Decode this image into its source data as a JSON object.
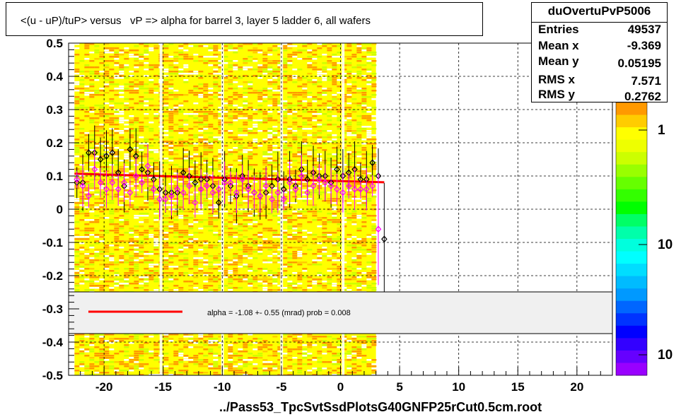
{
  "title": "<(u - uP)/tuP> versus   vP => alpha for barrel 3, layer 5 ladder 6, all wafers",
  "file_label": "../Pass53_TpcSvtSsdPlotsG40GNFP25rCut0.5cm.root",
  "stats": {
    "name": "duOvertuPvP5006",
    "rows": [
      {
        "label": "Entries",
        "value": "49537"
      },
      {
        "label": "Mean x",
        "value": "-9.369"
      },
      {
        "label": "Mean y",
        "value": "0.05195"
      },
      {
        "label": "RMS x",
        "value": "7.571"
      },
      {
        "label": "RMS y",
        "value": "0.2762"
      }
    ]
  },
  "legend": {
    "fit_text": "alpha =   -1.08 +-  0.55 (mrad) prob = 0.008",
    "line_color": "#ff0000"
  },
  "palette_labels": [
    "1",
    "10",
    "10"
  ],
  "chart_data": {
    "type": "scatter",
    "xlim": [
      -23,
      23
    ],
    "ylim": [
      -0.5,
      0.5
    ],
    "x_ticks": [
      -20,
      -15,
      -10,
      -5,
      0,
      5,
      10,
      15,
      20
    ],
    "x_tick_labels": [
      "-20",
      "-15",
      "-10",
      "-5",
      "0",
      "5",
      "10",
      "15",
      "20"
    ],
    "y_ticks": [
      -0.5,
      -0.4,
      -0.3,
      -0.2,
      -0.1,
      0,
      0.1,
      0.2,
      0.3,
      0.4,
      0.5
    ],
    "y_tick_labels": [
      "-0.5",
      "-0.4",
      "-0.3",
      "-0.2",
      "-0.1",
      "0",
      "0.1",
      "0.2",
      "0.3",
      "0.4",
      "0.5"
    ],
    "grid": true,
    "heatmap_x_range": [
      -22.5,
      3
    ],
    "fit_line": {
      "x": [
        -22.5,
        3.7
      ],
      "y": [
        0.107,
        0.081
      ]
    },
    "series": [
      {
        "marker": "black-open-diamond",
        "x": [
          -22.3,
          -21.8,
          -21.3,
          -20.8,
          -20.3,
          -19.8,
          -19.3,
          -18.8,
          -18.3,
          -17.8,
          -17.3,
          -16.8,
          -16.3,
          -15.8,
          -15.3,
          -14.8,
          -14.3,
          -13.8,
          -13.3,
          -12.8,
          -12.3,
          -11.8,
          -11.3,
          -10.8,
          -10.3,
          -9.8,
          -9.3,
          -8.8,
          -8.3,
          -7.8,
          -7.3,
          -6.8,
          -6.3,
          -5.8,
          -5.3,
          -4.8,
          -4.3,
          -3.8,
          -3.3,
          -2.8,
          -2.3,
          -1.8,
          -1.3,
          -0.8,
          -0.3,
          0.2,
          0.7,
          1.2,
          1.7,
          2.2,
          2.7,
          3.2,
          3.7
        ],
        "y": [
          0.08,
          0.08,
          0.17,
          0.17,
          0.15,
          0.16,
          0.17,
          0.11,
          0.07,
          0.18,
          0.16,
          0.12,
          0.11,
          0.09,
          0.06,
          0.05,
          0.05,
          0.05,
          0.11,
          0.1,
          0.08,
          0.09,
          0.09,
          0.07,
          0.02,
          0.09,
          0.07,
          0.04,
          0.1,
          0.07,
          0.05,
          0.04,
          0.05,
          0.07,
          0.09,
          0.06,
          0.09,
          0.07,
          0.12,
          0.09,
          0.11,
          0.1,
          0.1,
          0.08,
          0.12,
          0.1,
          0.11,
          0.12,
          0.09,
          0.09,
          0.14,
          0.1,
          -0.09
        ]
      },
      {
        "marker": "magenta-open-diamond",
        "x": [
          -22.3,
          -21.8,
          -21.3,
          -20.8,
          -20.3,
          -19.8,
          -19.3,
          -18.8,
          -18.3,
          -17.8,
          -17.3,
          -16.8,
          -16.3,
          -15.8,
          -15.3,
          -14.8,
          -14.3,
          -13.8,
          -13.3,
          -12.8,
          -12.3,
          -11.8,
          -11.3,
          -10.8,
          -10.3,
          -9.8,
          -9.3,
          -8.8,
          -8.3,
          -7.8,
          -7.3,
          -6.8,
          -6.3,
          -5.8,
          -5.3,
          -4.8,
          -4.3,
          -3.8,
          -3.3,
          -2.8,
          -2.3,
          -1.8,
          -1.3,
          -0.8,
          -0.3,
          0.2,
          0.7,
          1.2,
          1.7,
          2.2,
          2.7,
          3.2
        ],
        "y": [
          0.09,
          0.07,
          0.04,
          0.12,
          0.08,
          0.06,
          0.08,
          0.06,
          0.08,
          0.05,
          0.1,
          0.08,
          0.13,
          0.06,
          0.03,
          0.03,
          0.04,
          0.06,
          0.05,
          0.07,
          0.02,
          0.06,
          0.07,
          0.05,
          0.06,
          0.08,
          0.08,
          0.05,
          0.09,
          0.06,
          0.05,
          0.04,
          0.07,
          0.03,
          0.05,
          0.03,
          0.08,
          0.06,
          0.1,
          0.05,
          0.07,
          0.09,
          0.08,
          0.07,
          0.06,
          0.05,
          0.07,
          0.06,
          0.06,
          0.06,
          0.07,
          -0.06
        ]
      }
    ]
  }
}
